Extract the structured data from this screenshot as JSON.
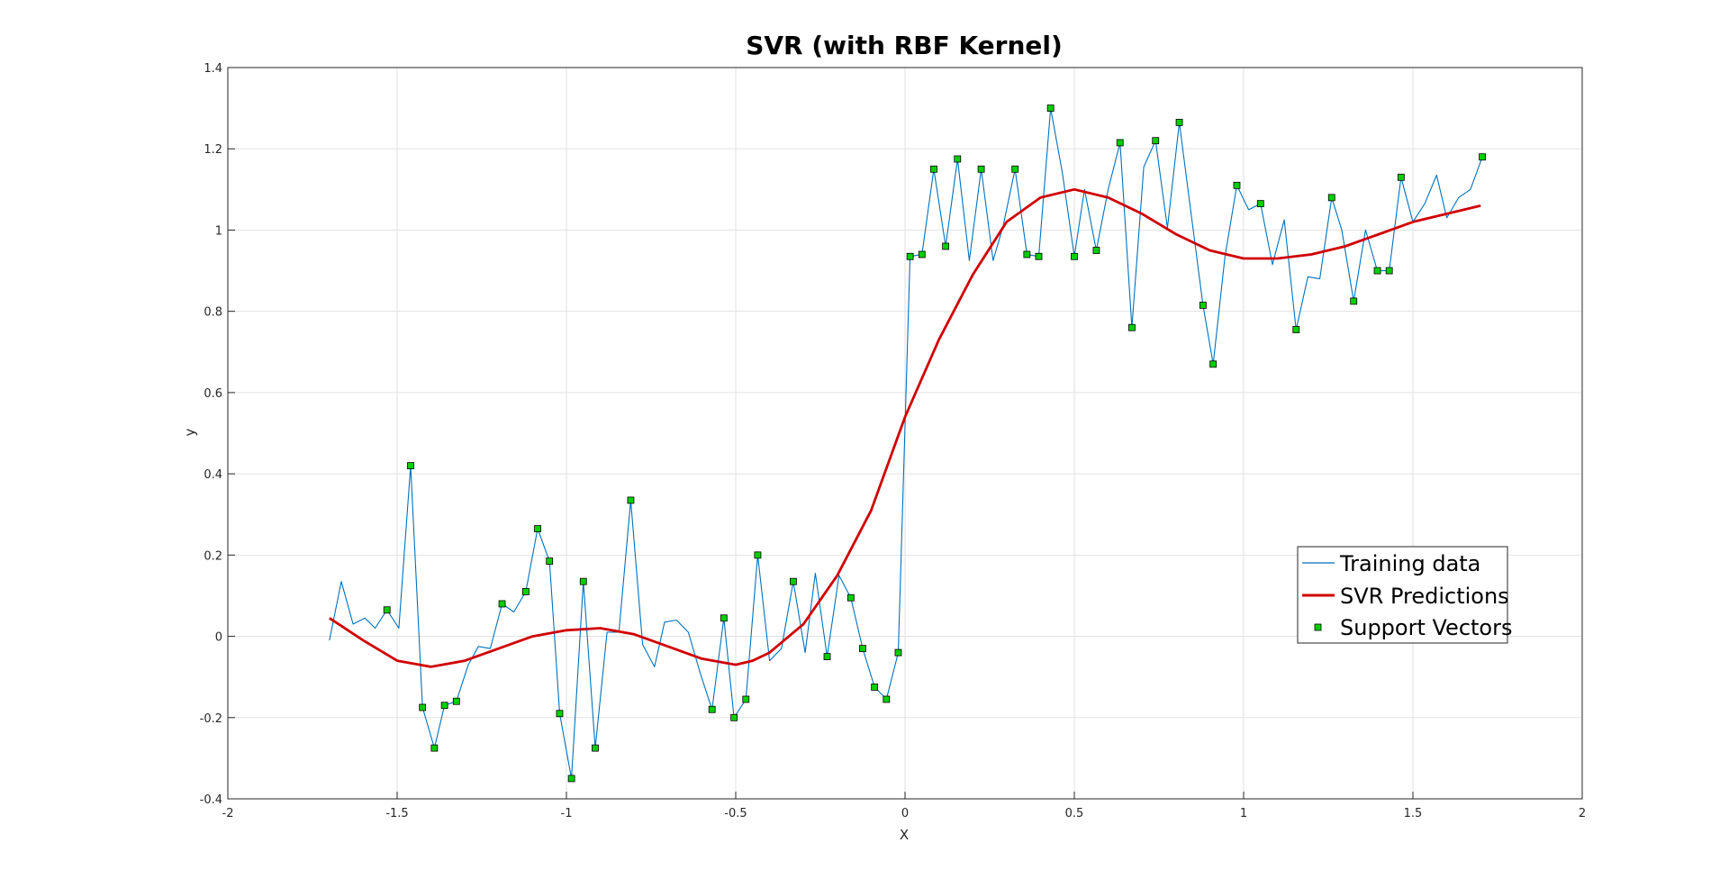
{
  "chart_data": {
    "type": "line",
    "title": "SVR (with RBF Kernel)",
    "xlabel": "X",
    "ylabel": "y",
    "xlim": [
      -2,
      2
    ],
    "ylim": [
      -0.4,
      1.4
    ],
    "xticks": [
      "-2",
      "-1.5",
      "-1",
      "-0.5",
      "0",
      "0.5",
      "1",
      "1.5",
      "2"
    ],
    "yticks": [
      "-0.4",
      "-0.2",
      "0",
      "0.2",
      "0.4",
      "0.6",
      "0.8",
      "1",
      "1.2",
      "1.4"
    ],
    "grid": true,
    "legend_position": "lower-right",
    "colors": {
      "training": "#0072BD",
      "prediction": "#D00000",
      "support_fill": "#00D000",
      "support_edge": "#000000",
      "grid": "#E2E2E2",
      "axis": "#262626"
    },
    "series": [
      {
        "name": "Training data",
        "style": "thin-line",
        "x": [
          -1.7,
          -1.665,
          -1.63,
          -1.595,
          -1.565,
          -1.53,
          -1.495,
          -1.46,
          -1.425,
          -1.39,
          -1.36,
          -1.325,
          -1.29,
          -1.26,
          -1.225,
          -1.19,
          -1.155,
          -1.12,
          -1.085,
          -1.05,
          -1.02,
          -0.985,
          -0.95,
          -0.915,
          -0.88,
          -0.845,
          -0.81,
          -0.775,
          -0.74,
          -0.71,
          -0.675,
          -0.64,
          -0.605,
          -0.57,
          -0.535,
          -0.505,
          -0.47,
          -0.435,
          -0.4,
          -0.365,
          -0.33,
          -0.295,
          -0.265,
          -0.23,
          -0.195,
          -0.16,
          -0.125,
          -0.09,
          -0.055,
          -0.02,
          0.015,
          0.05,
          0.085,
          0.12,
          0.155,
          0.19,
          0.225,
          0.26,
          0.29,
          0.325,
          0.36,
          0.395,
          0.43,
          0.465,
          0.5,
          0.53,
          0.565,
          0.6,
          0.635,
          0.67,
          0.705,
          0.74,
          0.775,
          0.81,
          0.845,
          0.88,
          0.91,
          0.945,
          0.98,
          1.015,
          1.05,
          1.085,
          1.12,
          1.155,
          1.19,
          1.225,
          1.26,
          1.29,
          1.325,
          1.36,
          1.395,
          1.43,
          1.465,
          1.5,
          1.535,
          1.57,
          1.6,
          1.635,
          1.67,
          1.705
        ],
        "y": [
          -0.01,
          0.135,
          0.03,
          0.045,
          0.02,
          0.065,
          0.02,
          0.42,
          -0.175,
          -0.275,
          -0.17,
          -0.16,
          -0.07,
          -0.025,
          -0.03,
          0.08,
          0.06,
          0.11,
          0.265,
          0.185,
          -0.19,
          -0.35,
          0.135,
          -0.275,
          0.01,
          0.01,
          0.335,
          -0.02,
          -0.075,
          0.035,
          0.04,
          0.01,
          -0.09,
          -0.18,
          0.045,
          -0.2,
          -0.155,
          0.2,
          -0.06,
          -0.03,
          0.135,
          -0.04,
          0.155,
          -0.05,
          0.15,
          0.095,
          -0.03,
          -0.125,
          -0.155,
          -0.04,
          0.935,
          0.94,
          1.15,
          0.96,
          1.175,
          0.925,
          1.15,
          0.925,
          1.01,
          1.15,
          0.94,
          0.935,
          1.3,
          1.14,
          0.935,
          1.1,
          0.95,
          1.1,
          1.215,
          0.76,
          1.155,
          1.22,
          1.005,
          1.265,
          1.04,
          0.815,
          0.67,
          0.935,
          1.11,
          1.05,
          1.065,
          0.915,
          1.025,
          0.755,
          0.885,
          0.88,
          1.08,
          1.0,
          0.825,
          1.0,
          0.9,
          0.9,
          1.13,
          1.02,
          1.065,
          1.135,
          1.03,
          1.08,
          1.1,
          1.18
        ]
      },
      {
        "name": "SVR Predictions",
        "style": "thick-line",
        "x": [
          -1.7,
          -1.6,
          -1.5,
          -1.4,
          -1.3,
          -1.2,
          -1.1,
          -1.0,
          -0.9,
          -0.8,
          -0.7,
          -0.6,
          -0.5,
          -0.45,
          -0.4,
          -0.3,
          -0.2,
          -0.1,
          0.0,
          0.1,
          0.2,
          0.3,
          0.4,
          0.5,
          0.6,
          0.7,
          0.8,
          0.9,
          1.0,
          1.1,
          1.2,
          1.3,
          1.4,
          1.5,
          1.6,
          1.7
        ],
        "y": [
          0.045,
          -0.01,
          -0.06,
          -0.075,
          -0.06,
          -0.03,
          0.0,
          0.015,
          0.02,
          0.005,
          -0.025,
          -0.055,
          -0.07,
          -0.06,
          -0.04,
          0.03,
          0.15,
          0.31,
          0.54,
          0.73,
          0.89,
          1.02,
          1.08,
          1.1,
          1.08,
          1.04,
          0.99,
          0.95,
          0.93,
          0.93,
          0.94,
          0.96,
          0.99,
          1.02,
          1.04,
          1.06
        ]
      },
      {
        "name": "Support Vectors",
        "style": "markers",
        "x": [
          -1.53,
          -1.46,
          -1.425,
          -1.39,
          -1.36,
          -1.325,
          -1.19,
          -1.12,
          -1.085,
          -1.05,
          -1.02,
          -0.985,
          -0.95,
          -0.915,
          -0.81,
          -0.57,
          -0.535,
          -0.505,
          -0.47,
          -0.435,
          -0.33,
          -0.23,
          -0.16,
          -0.125,
          -0.09,
          -0.055,
          -0.02,
          0.015,
          0.05,
          0.085,
          0.12,
          0.155,
          0.225,
          0.325,
          0.36,
          0.395,
          0.43,
          0.5,
          0.565,
          0.635,
          0.67,
          0.74,
          0.81,
          0.88,
          0.91,
          0.98,
          1.05,
          1.155,
          1.26,
          1.325,
          1.395,
          1.43,
          1.465,
          1.705
        ],
        "y": [
          0.065,
          0.42,
          -0.175,
          -0.275,
          -0.17,
          -0.16,
          0.08,
          0.11,
          0.265,
          0.185,
          -0.19,
          -0.35,
          0.135,
          -0.275,
          0.335,
          -0.18,
          0.045,
          -0.2,
          -0.155,
          0.2,
          0.135,
          -0.05,
          0.095,
          -0.03,
          -0.125,
          -0.155,
          -0.04,
          0.935,
          0.94,
          1.15,
          0.96,
          1.175,
          1.15,
          1.15,
          0.94,
          0.935,
          1.3,
          0.935,
          0.95,
          1.215,
          0.76,
          1.22,
          1.265,
          0.815,
          0.67,
          1.11,
          1.065,
          0.755,
          1.08,
          0.825,
          0.9,
          0.9,
          1.13,
          1.18
        ]
      }
    ]
  }
}
